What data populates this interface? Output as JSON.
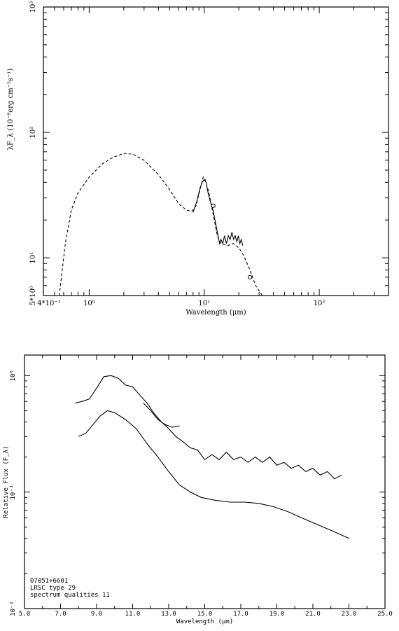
{
  "chart_data": [
    {
      "type": "line",
      "xscale": "log",
      "yscale": "log",
      "xlim": [
        0.4,
        400
      ],
      "ylim": [
        5,
        1000
      ],
      "xlabel": "Wavelength (μm)",
      "ylabel": "λF_λ (10⁻⁹erg cm⁻²s⁻¹)",
      "x_tick_labels": [
        "4*10⁻¹",
        "10⁰",
        "10¹",
        "10²"
      ],
      "y_tick_labels": [
        "5*10⁰",
        "10¹",
        "10²",
        "10³"
      ],
      "series": [
        {
          "style": "dashed",
          "points": [
            [
              0.55,
              5
            ],
            [
              0.62,
              13
            ],
            [
              0.7,
              24
            ],
            [
              0.8,
              33
            ],
            [
              1.0,
              44
            ],
            [
              1.3,
              56
            ],
            [
              1.6,
              63
            ],
            [
              2.0,
              68
            ],
            [
              2.4,
              67
            ],
            [
              3.0,
              60
            ],
            [
              4.0,
              46
            ],
            [
              5.0,
              35
            ],
            [
              6.0,
              27
            ],
            [
              7.0,
              24
            ],
            [
              7.8,
              23.5
            ],
            [
              8.5,
              26
            ],
            [
              9.2,
              35
            ],
            [
              9.8,
              44
            ],
            [
              10.2,
              42
            ],
            [
              11,
              33
            ],
            [
              12,
              22
            ],
            [
              13,
              15
            ],
            [
              14,
              13
            ],
            [
              16,
              12.5
            ],
            [
              18,
              13
            ],
            [
              20,
              12
            ],
            [
              22,
              10.5
            ],
            [
              25,
              8
            ],
            [
              28,
              6
            ],
            [
              32,
              5
            ]
          ]
        },
        {
          "style": "solid",
          "points": [
            [
              8.0,
              23
            ],
            [
              8.6,
              28
            ],
            [
              9.2,
              36
            ],
            [
              9.6,
              40
            ],
            [
              10.0,
              42
            ],
            [
              10.4,
              40
            ],
            [
              10.8,
              33
            ],
            [
              11.3,
              28
            ],
            [
              11.8,
              25
            ],
            [
              12.4,
              20
            ],
            [
              13.0,
              16
            ],
            [
              13.6,
              13
            ],
            [
              14.0,
              14
            ],
            [
              14.5,
              13
            ],
            [
              15,
              15
            ],
            [
              15.6,
              13
            ],
            [
              16.2,
              15
            ],
            [
              16.8,
              14
            ],
            [
              17.4,
              16
            ],
            [
              18,
              14
            ],
            [
              18.6,
              15
            ],
            [
              19.2,
              13.5
            ],
            [
              19.8,
              15
            ],
            [
              20.4,
              13
            ],
            [
              21,
              14
            ],
            [
              21.6,
              12.5
            ]
          ]
        },
        {
          "style": "points",
          "points": [
            [
              12,
              26
            ],
            [
              25,
              7
            ]
          ]
        }
      ]
    },
    {
      "type": "line",
      "yscale": "log",
      "xlim": [
        5,
        25
      ],
      "ylim": [
        0.01,
        1.5
      ],
      "xlabel": "Wavelength (μm)",
      "ylabel": "Relative Flux (F_λ)",
      "x_tick_labels": [
        "5.0",
        "7.0",
        "9.0",
        "11.0",
        "13.0",
        "15.0",
        "17.0",
        "19.0",
        "21.0",
        "23.0",
        "25.0"
      ],
      "y_tick_labels": [
        "10⁰",
        "10⁻¹",
        "10⁻²"
      ],
      "annotation": [
        "07051+6601",
        "LRSC type 29",
        "spectrum qualities 11"
      ],
      "series": [
        {
          "name": "upper",
          "points": [
            [
              7.8,
              0.58
            ],
            [
              8.2,
              0.6
            ],
            [
              8.6,
              0.63
            ],
            [
              9.0,
              0.78
            ],
            [
              9.4,
              0.98
            ],
            [
              9.8,
              1.0
            ],
            [
              10.2,
              0.95
            ],
            [
              10.6,
              0.83
            ],
            [
              11.0,
              0.8
            ],
            [
              11.4,
              0.68
            ],
            [
              11.8,
              0.58
            ],
            [
              12.2,
              0.47
            ],
            [
              12.6,
              0.4
            ],
            [
              13.0,
              0.35
            ],
            [
              13.4,
              0.3
            ],
            [
              13.8,
              0.27
            ],
            [
              14.2,
              0.24
            ],
            [
              14.6,
              0.23
            ],
            [
              15.0,
              0.19
            ],
            [
              15.4,
              0.21
            ],
            [
              15.8,
              0.19
            ],
            [
              16.2,
              0.22
            ],
            [
              16.6,
              0.19
            ],
            [
              17.0,
              0.2
            ],
            [
              17.4,
              0.18
            ],
            [
              17.8,
              0.2
            ],
            [
              18.2,
              0.18
            ],
            [
              18.6,
              0.2
            ],
            [
              19.0,
              0.17
            ],
            [
              19.4,
              0.18
            ],
            [
              19.8,
              0.16
            ],
            [
              20.2,
              0.17
            ],
            [
              20.6,
              0.15
            ],
            [
              21.0,
              0.16
            ],
            [
              21.4,
              0.14
            ],
            [
              21.8,
              0.15
            ],
            [
              22.2,
              0.13
            ],
            [
              22.6,
              0.14
            ]
          ]
        },
        {
          "name": "lower",
          "points": [
            [
              8.0,
              0.3
            ],
            [
              8.4,
              0.32
            ],
            [
              8.8,
              0.38
            ],
            [
              9.2,
              0.45
            ],
            [
              9.6,
              0.5
            ],
            [
              10.0,
              0.48
            ],
            [
              10.6,
              0.42
            ],
            [
              11.2,
              0.35
            ],
            [
              11.8,
              0.26
            ],
            [
              12.4,
              0.2
            ],
            [
              13.0,
              0.15
            ],
            [
              13.6,
              0.115
            ],
            [
              14.2,
              0.1
            ],
            [
              14.8,
              0.09
            ],
            [
              15.6,
              0.085
            ],
            [
              16.4,
              0.082
            ],
            [
              17.2,
              0.082
            ],
            [
              18.0,
              0.08
            ],
            [
              18.8,
              0.075
            ],
            [
              19.6,
              0.068
            ],
            [
              20.4,
              0.06
            ],
            [
              21.2,
              0.053
            ],
            [
              22.0,
              0.047
            ],
            [
              23.0,
              0.04
            ]
          ]
        },
        {
          "name": "segment",
          "points": [
            [
              11.6,
              0.58
            ],
            [
              12.0,
              0.5
            ],
            [
              12.4,
              0.42
            ],
            [
              12.8,
              0.38
            ],
            [
              13.2,
              0.36
            ],
            [
              13.6,
              0.37
            ]
          ]
        }
      ]
    }
  ]
}
